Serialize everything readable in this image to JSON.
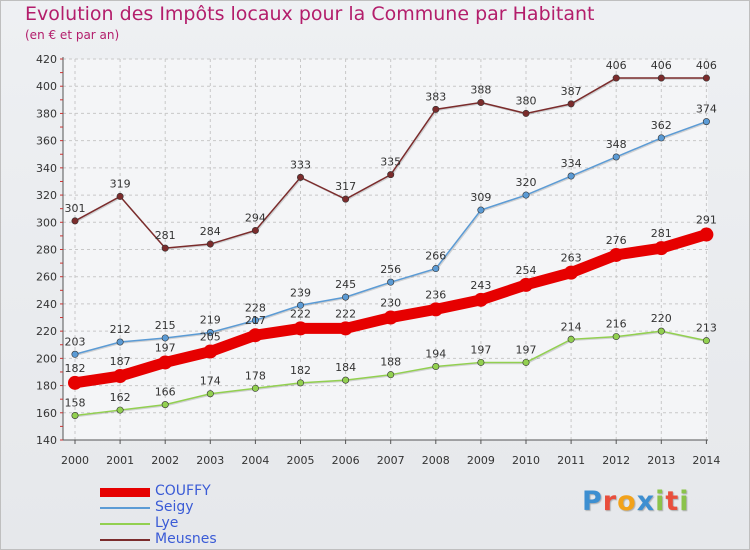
{
  "header": {
    "title": "Evolution des Impôts locaux pour la Commune par Habitant",
    "subtitle": "(en € et par an)"
  },
  "logo": {
    "text": "Proxiti",
    "colors": [
      "#3d8fd1",
      "#e94e3c",
      "#f2a21a",
      "#3d8fd1",
      "#8bc34a",
      "#e94e3c",
      "#8bc34a"
    ]
  },
  "chart_data": {
    "type": "line",
    "title": "Evolution des Impôts locaux pour la Commune par Habitant",
    "subtitle": "(en € et par an)",
    "xlabel": "",
    "ylabel": "",
    "ylim": [
      140,
      420
    ],
    "yticks": [
      140,
      160,
      180,
      200,
      220,
      240,
      260,
      280,
      300,
      320,
      340,
      360,
      380,
      400,
      420
    ],
    "categories": [
      "2000",
      "2001",
      "2002",
      "2003",
      "2004",
      "2005",
      "2006",
      "2007",
      "2008",
      "2009",
      "2010",
      "2011",
      "2012",
      "2013",
      "2014"
    ],
    "grid": true,
    "legend_position": "bottom-left",
    "series": [
      {
        "name": "COUFFY",
        "color": "#e60000",
        "emphasis": true,
        "values": [
          182,
          187,
          197,
          205,
          217,
          222,
          222,
          230,
          236,
          243,
          254,
          263,
          276,
          281,
          291
        ]
      },
      {
        "name": "Seigy",
        "color": "#5b9bd5",
        "values": [
          203,
          212,
          215,
          219,
          228,
          239,
          245,
          256,
          266,
          309,
          320,
          334,
          348,
          362,
          374
        ]
      },
      {
        "name": "Lye",
        "color": "#92d050",
        "values": [
          158,
          162,
          166,
          174,
          178,
          182,
          184,
          188,
          194,
          197,
          197,
          214,
          216,
          220,
          213
        ]
      },
      {
        "name": "Meusnes",
        "color": "#7b2c2c",
        "values": [
          301,
          319,
          281,
          284,
          294,
          333,
          317,
          335,
          383,
          388,
          380,
          387,
          406,
          406,
          406
        ]
      }
    ]
  }
}
